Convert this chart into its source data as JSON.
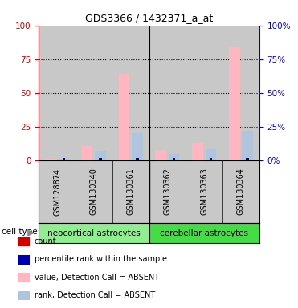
{
  "title": "GDS3366 / 1432371_a_at",
  "samples": [
    "GSM128874",
    "GSM130340",
    "GSM130361",
    "GSM130362",
    "GSM130363",
    "GSM130364"
  ],
  "groups": [
    {
      "name": "neocortical astrocytes",
      "indices": [
        0,
        1,
        2
      ]
    },
    {
      "name": "cerebellar astrocytes",
      "indices": [
        3,
        4,
        5
      ]
    }
  ],
  "value_absent": [
    1.0,
    10.5,
    64.0,
    8.0,
    13.0,
    84.0
  ],
  "rank_absent": [
    1.0,
    7.0,
    20.0,
    5.0,
    8.5,
    22.0
  ],
  "count": [
    0.4,
    0.4,
    0.4,
    0.4,
    0.4,
    0.4
  ],
  "percentile": [
    1.5,
    1.5,
    1.5,
    1.5,
    1.5,
    1.5
  ],
  "ylim": [
    0,
    100
  ],
  "yticks": [
    0,
    25,
    50,
    75,
    100
  ],
  "bar_width": 0.3,
  "value_color": "#FFB6C1",
  "rank_color": "#B0C4DE",
  "count_color": "#CC0000",
  "percentile_color": "#0000AA",
  "bar_bg_color": "#C8C8C8",
  "group1_color": "#90EE90",
  "group2_color": "#44DD44",
  "left_axis_color": "#CC0000",
  "right_axis_color": "#0000CC",
  "legend_items": [
    {
      "color": "#CC0000",
      "label": "count"
    },
    {
      "color": "#0000AA",
      "label": "percentile rank within the sample"
    },
    {
      "color": "#FFB6C1",
      "label": "value, Detection Call = ABSENT"
    },
    {
      "color": "#B0C4DE",
      "label": "rank, Detection Call = ABSENT"
    }
  ]
}
